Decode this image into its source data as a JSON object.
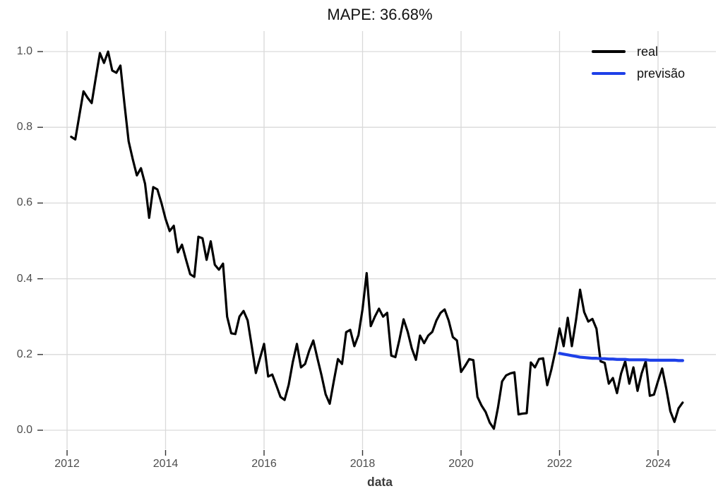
{
  "chart_data": {
    "type": "line",
    "title": "MAPE: 36.68%",
    "xlabel": "data",
    "ylabel": "",
    "grid": true,
    "legend_position": "top-right",
    "x_ticks": [
      2012,
      2014,
      2016,
      2018,
      2020,
      2022,
      2024
    ],
    "y_ticks": [
      0.0,
      0.2,
      0.4,
      0.6,
      0.8,
      1.0
    ],
    "y_tick_labels": [
      "0.0",
      "0.2",
      "0.4",
      "0.6",
      "0.8",
      "1.0"
    ],
    "xlim": [
      2011.53,
      2025.17
    ],
    "ylim": [
      -0.05,
      1.05
    ],
    "colors": {
      "grid": "#d9d9d9",
      "tick": "#333333",
      "tick_label": "#4d4d4d",
      "title": "#121212",
      "axis_label": "#3b3b3b",
      "background": "#ffffff"
    },
    "series": [
      {
        "name": "real",
        "color": "#000000",
        "line_width": 3.2,
        "freq": "monthly",
        "start": {
          "year": 2012,
          "month": 2
        },
        "values": [
          0.775,
          0.768,
          0.832,
          0.895,
          0.878,
          0.864,
          0.931,
          0.996,
          0.97,
          1.0,
          0.95,
          0.944,
          0.963,
          0.86,
          0.763,
          0.716,
          0.673,
          0.692,
          0.651,
          0.561,
          0.642,
          0.636,
          0.6,
          0.558,
          0.526,
          0.54,
          0.47,
          0.49,
          0.45,
          0.412,
          0.405,
          0.511,
          0.507,
          0.45,
          0.499,
          0.437,
          0.424,
          0.44,
          0.3,
          0.256,
          0.254,
          0.3,
          0.315,
          0.29,
          0.222,
          0.151,
          0.19,
          0.228,
          0.142,
          0.147,
          0.118,
          0.088,
          0.08,
          0.12,
          0.18,
          0.228,
          0.166,
          0.175,
          0.21,
          0.237,
          0.19,
          0.145,
          0.095,
          0.07,
          0.13,
          0.188,
          0.175,
          0.259,
          0.265,
          0.222,
          0.251,
          0.32,
          0.415,
          0.275,
          0.3,
          0.321,
          0.3,
          0.31,
          0.197,
          0.193,
          0.24,
          0.293,
          0.26,
          0.216,
          0.186,
          0.25,
          0.23,
          0.25,
          0.26,
          0.29,
          0.31,
          0.319,
          0.289,
          0.246,
          0.237,
          0.154,
          0.17,
          0.188,
          0.185,
          0.088,
          0.065,
          0.048,
          0.02,
          0.004,
          0.06,
          0.129,
          0.145,
          0.15,
          0.153,
          0.042,
          0.044,
          0.045,
          0.179,
          0.166,
          0.188,
          0.19,
          0.119,
          0.16,
          0.21,
          0.269,
          0.222,
          0.297,
          0.222,
          0.29,
          0.371,
          0.312,
          0.287,
          0.294,
          0.268,
          0.182,
          0.178,
          0.123,
          0.138,
          0.098,
          0.15,
          0.182,
          0.123,
          0.166,
          0.104,
          0.15,
          0.182,
          0.091,
          0.094,
          0.13,
          0.163,
          0.11,
          0.05,
          0.022,
          0.058,
          0.073
        ]
      },
      {
        "name": "previsão",
        "color": "#1e40e8",
        "line_width": 4.2,
        "freq": "monthly",
        "start": {
          "year": 2022,
          "month": 1
        },
        "values": [
          0.203,
          0.201,
          0.199,
          0.197,
          0.195,
          0.193,
          0.192,
          0.191,
          0.19,
          0.19,
          0.189,
          0.189,
          0.188,
          0.188,
          0.187,
          0.187,
          0.187,
          0.186,
          0.186,
          0.186,
          0.186,
          0.186,
          0.185,
          0.185,
          0.185,
          0.185,
          0.185,
          0.185,
          0.185,
          0.184,
          0.184
        ]
      }
    ]
  }
}
